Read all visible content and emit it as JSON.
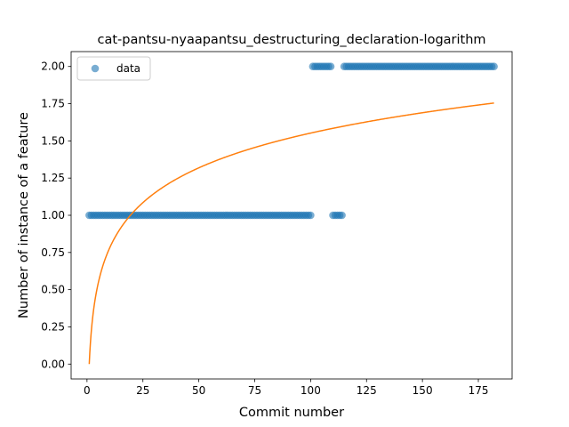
{
  "chart_data": {
    "type": "scatter",
    "title": "cat-pantsu-nyaapantsu_destructuring_declaration-logarithm",
    "xlabel": "Commit number",
    "ylabel": "Number of instance of a feature",
    "xlim": [
      -7.1,
      190.1
    ],
    "ylim": [
      -0.1,
      2.1
    ],
    "xticks": [
      0,
      25,
      50,
      75,
      100,
      125,
      150,
      175
    ],
    "yticks": [
      "0.00",
      "0.25",
      "0.50",
      "0.75",
      "1.00",
      "1.25",
      "1.50",
      "1.75",
      "2.00"
    ],
    "legend": {
      "position": "top-left",
      "entries": [
        "data"
      ]
    },
    "grid": false,
    "colors": {
      "points": "#1f77b4",
      "fit": "#ff7f0e"
    },
    "series": [
      {
        "name": "data",
        "kind": "scatter",
        "segments": [
          {
            "x_from": 1,
            "x_to": 100,
            "y": 1
          },
          {
            "x_from": 101,
            "x_to": 109,
            "y": 2
          },
          {
            "x_from": 110,
            "x_to": 114,
            "y": 1
          },
          {
            "x_from": 115,
            "x_to": 182,
            "y": 2
          }
        ]
      },
      {
        "kind": "line",
        "model": "logarithmic",
        "formula": "y = 0.3371 * ln(x)",
        "coefficients": {
          "a": 0.3371,
          "b": 0
        },
        "x_range": [
          1,
          182
        ]
      }
    ]
  }
}
